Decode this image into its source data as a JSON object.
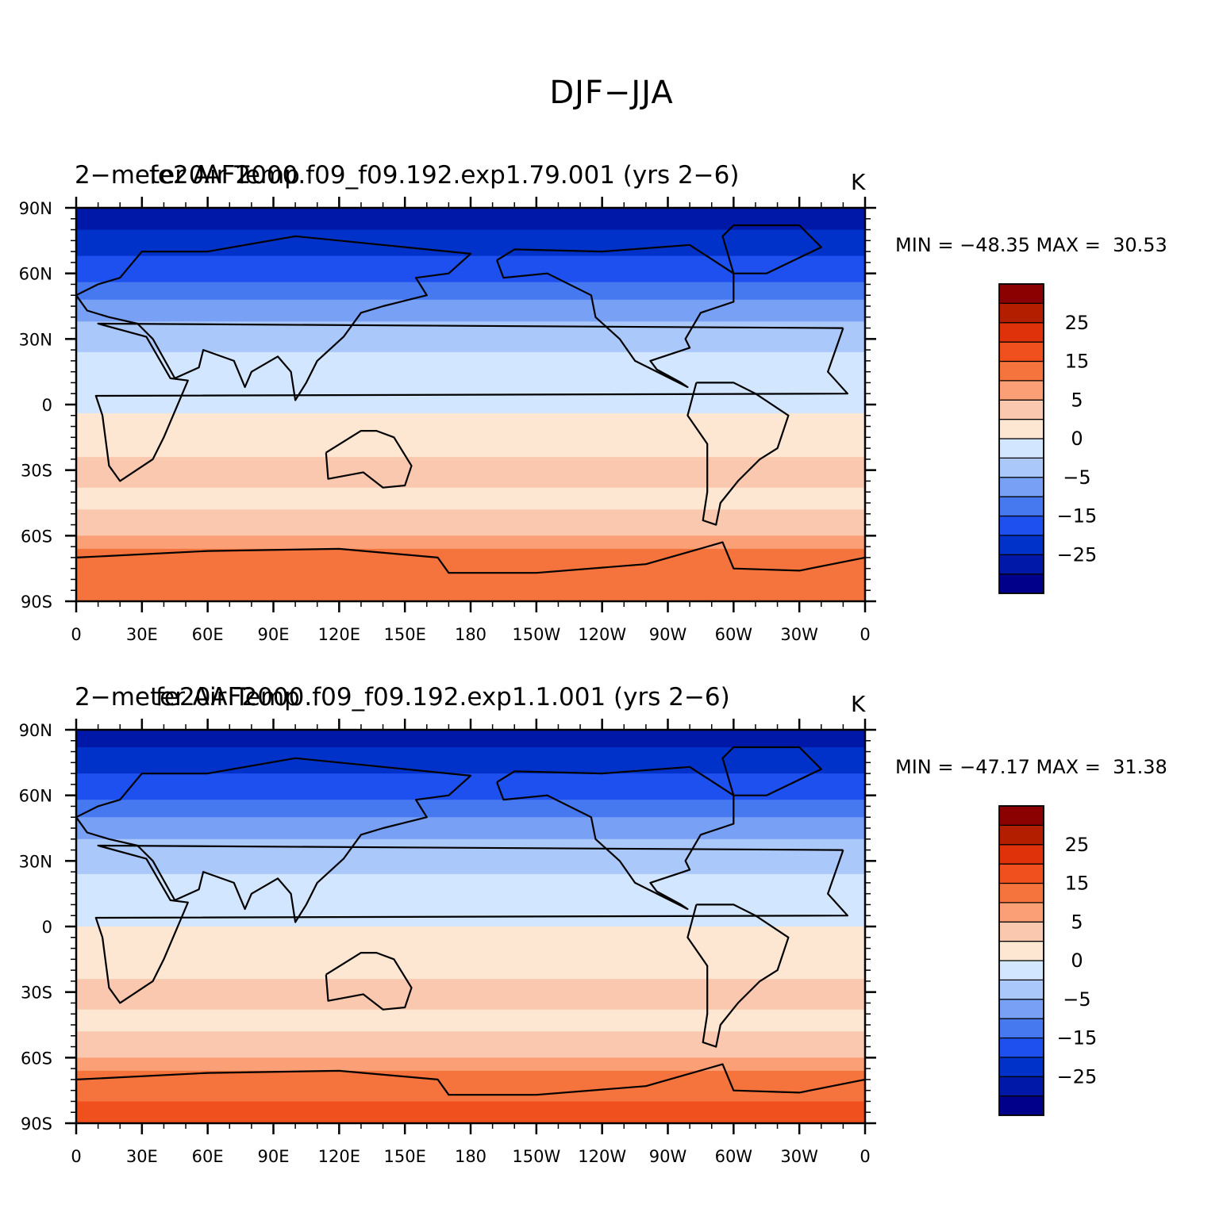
{
  "title": "DJF−JJA",
  "colorbar": {
    "colors": [
      "#00008b",
      "#0018a8",
      "#0032c9",
      "#1e50f0",
      "#4678f0",
      "#78a0f5",
      "#aac8fa",
      "#d2e6ff",
      "#fde6d2",
      "#fac8af",
      "#fa9f76",
      "#f5733c",
      "#f0501e",
      "#e0320a",
      "#b41e00",
      "#8b0000"
    ],
    "labels": [
      "25",
      "15",
      "5",
      "0",
      "−5",
      "−15",
      "−25"
    ]
  },
  "axes": {
    "ytick_labels": [
      "90N",
      "60N",
      "30N",
      "0",
      "30S",
      "60S",
      "90S"
    ],
    "xtick_labels": [
      "0",
      "30E",
      "60E",
      "90E",
      "120E",
      "150E",
      "180",
      "150W",
      "120W",
      "90W",
      "60W",
      "30W",
      "0"
    ]
  },
  "panels": [
    {
      "left_string": "2−meter Air Temp",
      "center_string": "fe20AF2000.f09_f09.192.exp1.79.001 (yrs 2−6)",
      "units": "K",
      "minmax": "MIN = −48.35 MAX =  30.53"
    },
    {
      "left_string": "2−meter Air Temp",
      "center_string": "fe20AF2000.f09_f09.192.exp1.1.001 (yrs 2−6)",
      "units": "K",
      "minmax": "MIN = −47.17 MAX =  31.38"
    }
  ],
  "chart_data": [
    {
      "type": "heatmap",
      "title": "fe20AF2000.f09_f09.192.exp1.79.001 (yrs 2−6)",
      "left_title": "2−meter Air Temp",
      "units": "K",
      "xlim": [
        0,
        360
      ],
      "ylim": [
        -90,
        90
      ],
      "min": -48.35,
      "max": 30.53,
      "contour_levels": [
        -35,
        -30,
        -25,
        -20,
        -15,
        -10,
        -5,
        0,
        5,
        10,
        15,
        20,
        25,
        30,
        35
      ],
      "zonal_profile": [
        [
          90,
          -35
        ],
        [
          75,
          -28
        ],
        [
          60,
          -22
        ],
        [
          45,
          -13
        ],
        [
          30,
          -7
        ],
        [
          15,
          -2
        ],
        [
          0,
          -1
        ],
        [
          -15,
          3
        ],
        [
          -30,
          6
        ],
        [
          -45,
          4
        ],
        [
          -55,
          7
        ],
        [
          -62,
          12
        ],
        [
          -70,
          18
        ],
        [
          -80,
          20
        ],
        [
          -90,
          19
        ]
      ]
    },
    {
      "type": "heatmap",
      "title": "fe20AF2000.f09_f09.192.exp1.1.001 (yrs 2−6)",
      "left_title": "2−meter Air Temp",
      "units": "K",
      "xlim": [
        0,
        360
      ],
      "ylim": [
        -90,
        90
      ],
      "min": -47.17,
      "max": 31.38,
      "contour_levels": [
        -35,
        -30,
        -25,
        -20,
        -15,
        -10,
        -5,
        0,
        5,
        10,
        15,
        20,
        25,
        30,
        35
      ],
      "zonal_profile": [
        [
          90,
          -34
        ],
        [
          75,
          -27
        ],
        [
          60,
          -21
        ],
        [
          45,
          -12
        ],
        [
          30,
          -7
        ],
        [
          15,
          -2
        ],
        [
          0,
          0
        ],
        [
          -15,
          3
        ],
        [
          -30,
          6
        ],
        [
          -45,
          4
        ],
        [
          -55,
          7
        ],
        [
          -62,
          12
        ],
        [
          -70,
          18
        ],
        [
          -80,
          20
        ],
        [
          -90,
          20
        ]
      ]
    }
  ]
}
